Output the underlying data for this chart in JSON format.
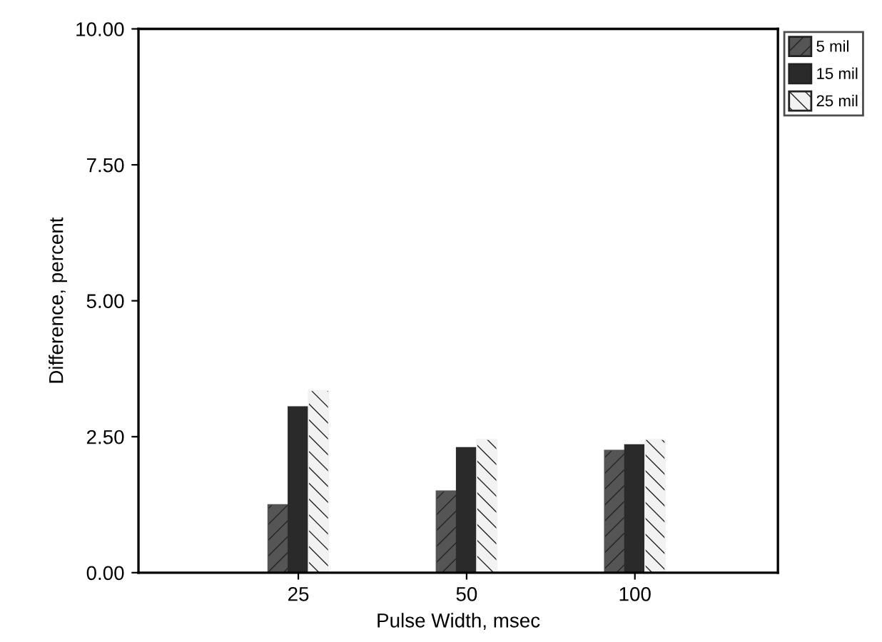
{
  "chart_data": {
    "type": "bar",
    "xlabel": "Pulse Width, msec",
    "ylabel": "Difference, percent",
    "categories": [
      "25",
      "50",
      "100"
    ],
    "series": [
      {
        "name": "5 mil",
        "color": "#555555",
        "values": [
          1.25,
          1.5,
          2.25
        ]
      },
      {
        "name": "15 mil",
        "color": "#2a2a2a",
        "values": [
          3.05,
          2.3,
          2.35
        ]
      },
      {
        "name": "25 mil",
        "color": "#f2f2f2",
        "values": [
          3.35,
          2.45,
          2.45
        ]
      }
    ],
    "ylim": [
      0,
      10
    ],
    "yticks": [
      {
        "value": 0,
        "label": "0.00"
      },
      {
        "value": 2.5,
        "label": "2.50"
      },
      {
        "value": 5,
        "label": "5.00"
      },
      {
        "value": 7.5,
        "label": "7.50"
      },
      {
        "value": 10,
        "label": "10.00"
      }
    ],
    "grid": false,
    "legend": "right"
  }
}
